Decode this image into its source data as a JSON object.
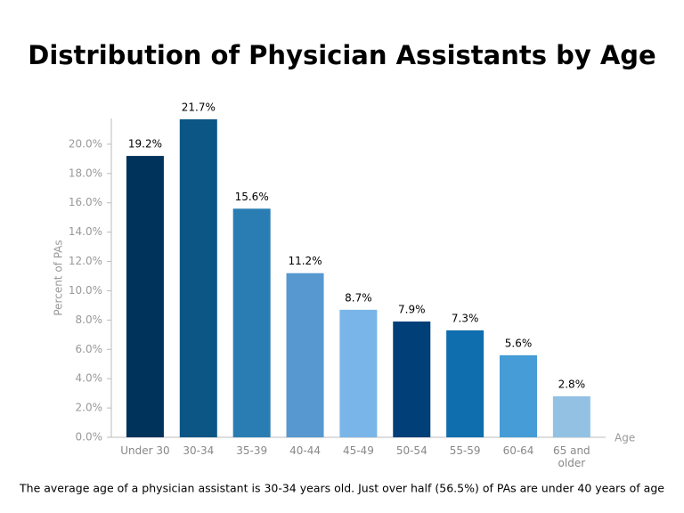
{
  "chart_data": {
    "type": "bar",
    "title": "Distribution of Physician Assistants by Age",
    "y_label": "Percent of PAs",
    "x_label": "Age",
    "caption": "The average age of a physician assistant is 30-34 years old. Just over half (56.5%) of PAs are under 40 years of age",
    "categories": [
      "Under 30",
      "30-34",
      "35-39",
      "40-44",
      "45-49",
      "50-54",
      "55-59",
      "60-64",
      "65 and older"
    ],
    "values": [
      19.2,
      21.7,
      15.6,
      11.2,
      8.7,
      7.9,
      7.3,
      5.6,
      2.8
    ],
    "value_labels": [
      "19.2%",
      "21.7%",
      "15.6%",
      "11.2%",
      "8.7%",
      "7.9%",
      "7.3%",
      "5.6%",
      "2.8%"
    ],
    "colors": [
      "#00335c",
      "#0b5685",
      "#2a7db3",
      "#5698cf",
      "#79b5e8",
      "#003f77",
      "#0f6ead",
      "#459cd6",
      "#93c1e4"
    ],
    "ylim": [
      0,
      22
    ],
    "yticks": [
      {
        "value": 0,
        "label": "0.0%"
      },
      {
        "value": 2,
        "label": "2.0%"
      },
      {
        "value": 4,
        "label": "4.0%"
      },
      {
        "value": 6,
        "label": "6.0%"
      },
      {
        "value": 8,
        "label": "8.0%"
      },
      {
        "value": 10,
        "label": "10.0%"
      },
      {
        "value": 12,
        "label": "12.0%"
      },
      {
        "value": 14,
        "label": "14.0%"
      },
      {
        "value": 16,
        "label": "16.0%"
      },
      {
        "value": 18,
        "label": "18.0%"
      },
      {
        "value": 20,
        "label": "20.0%"
      }
    ],
    "grid": false
  }
}
